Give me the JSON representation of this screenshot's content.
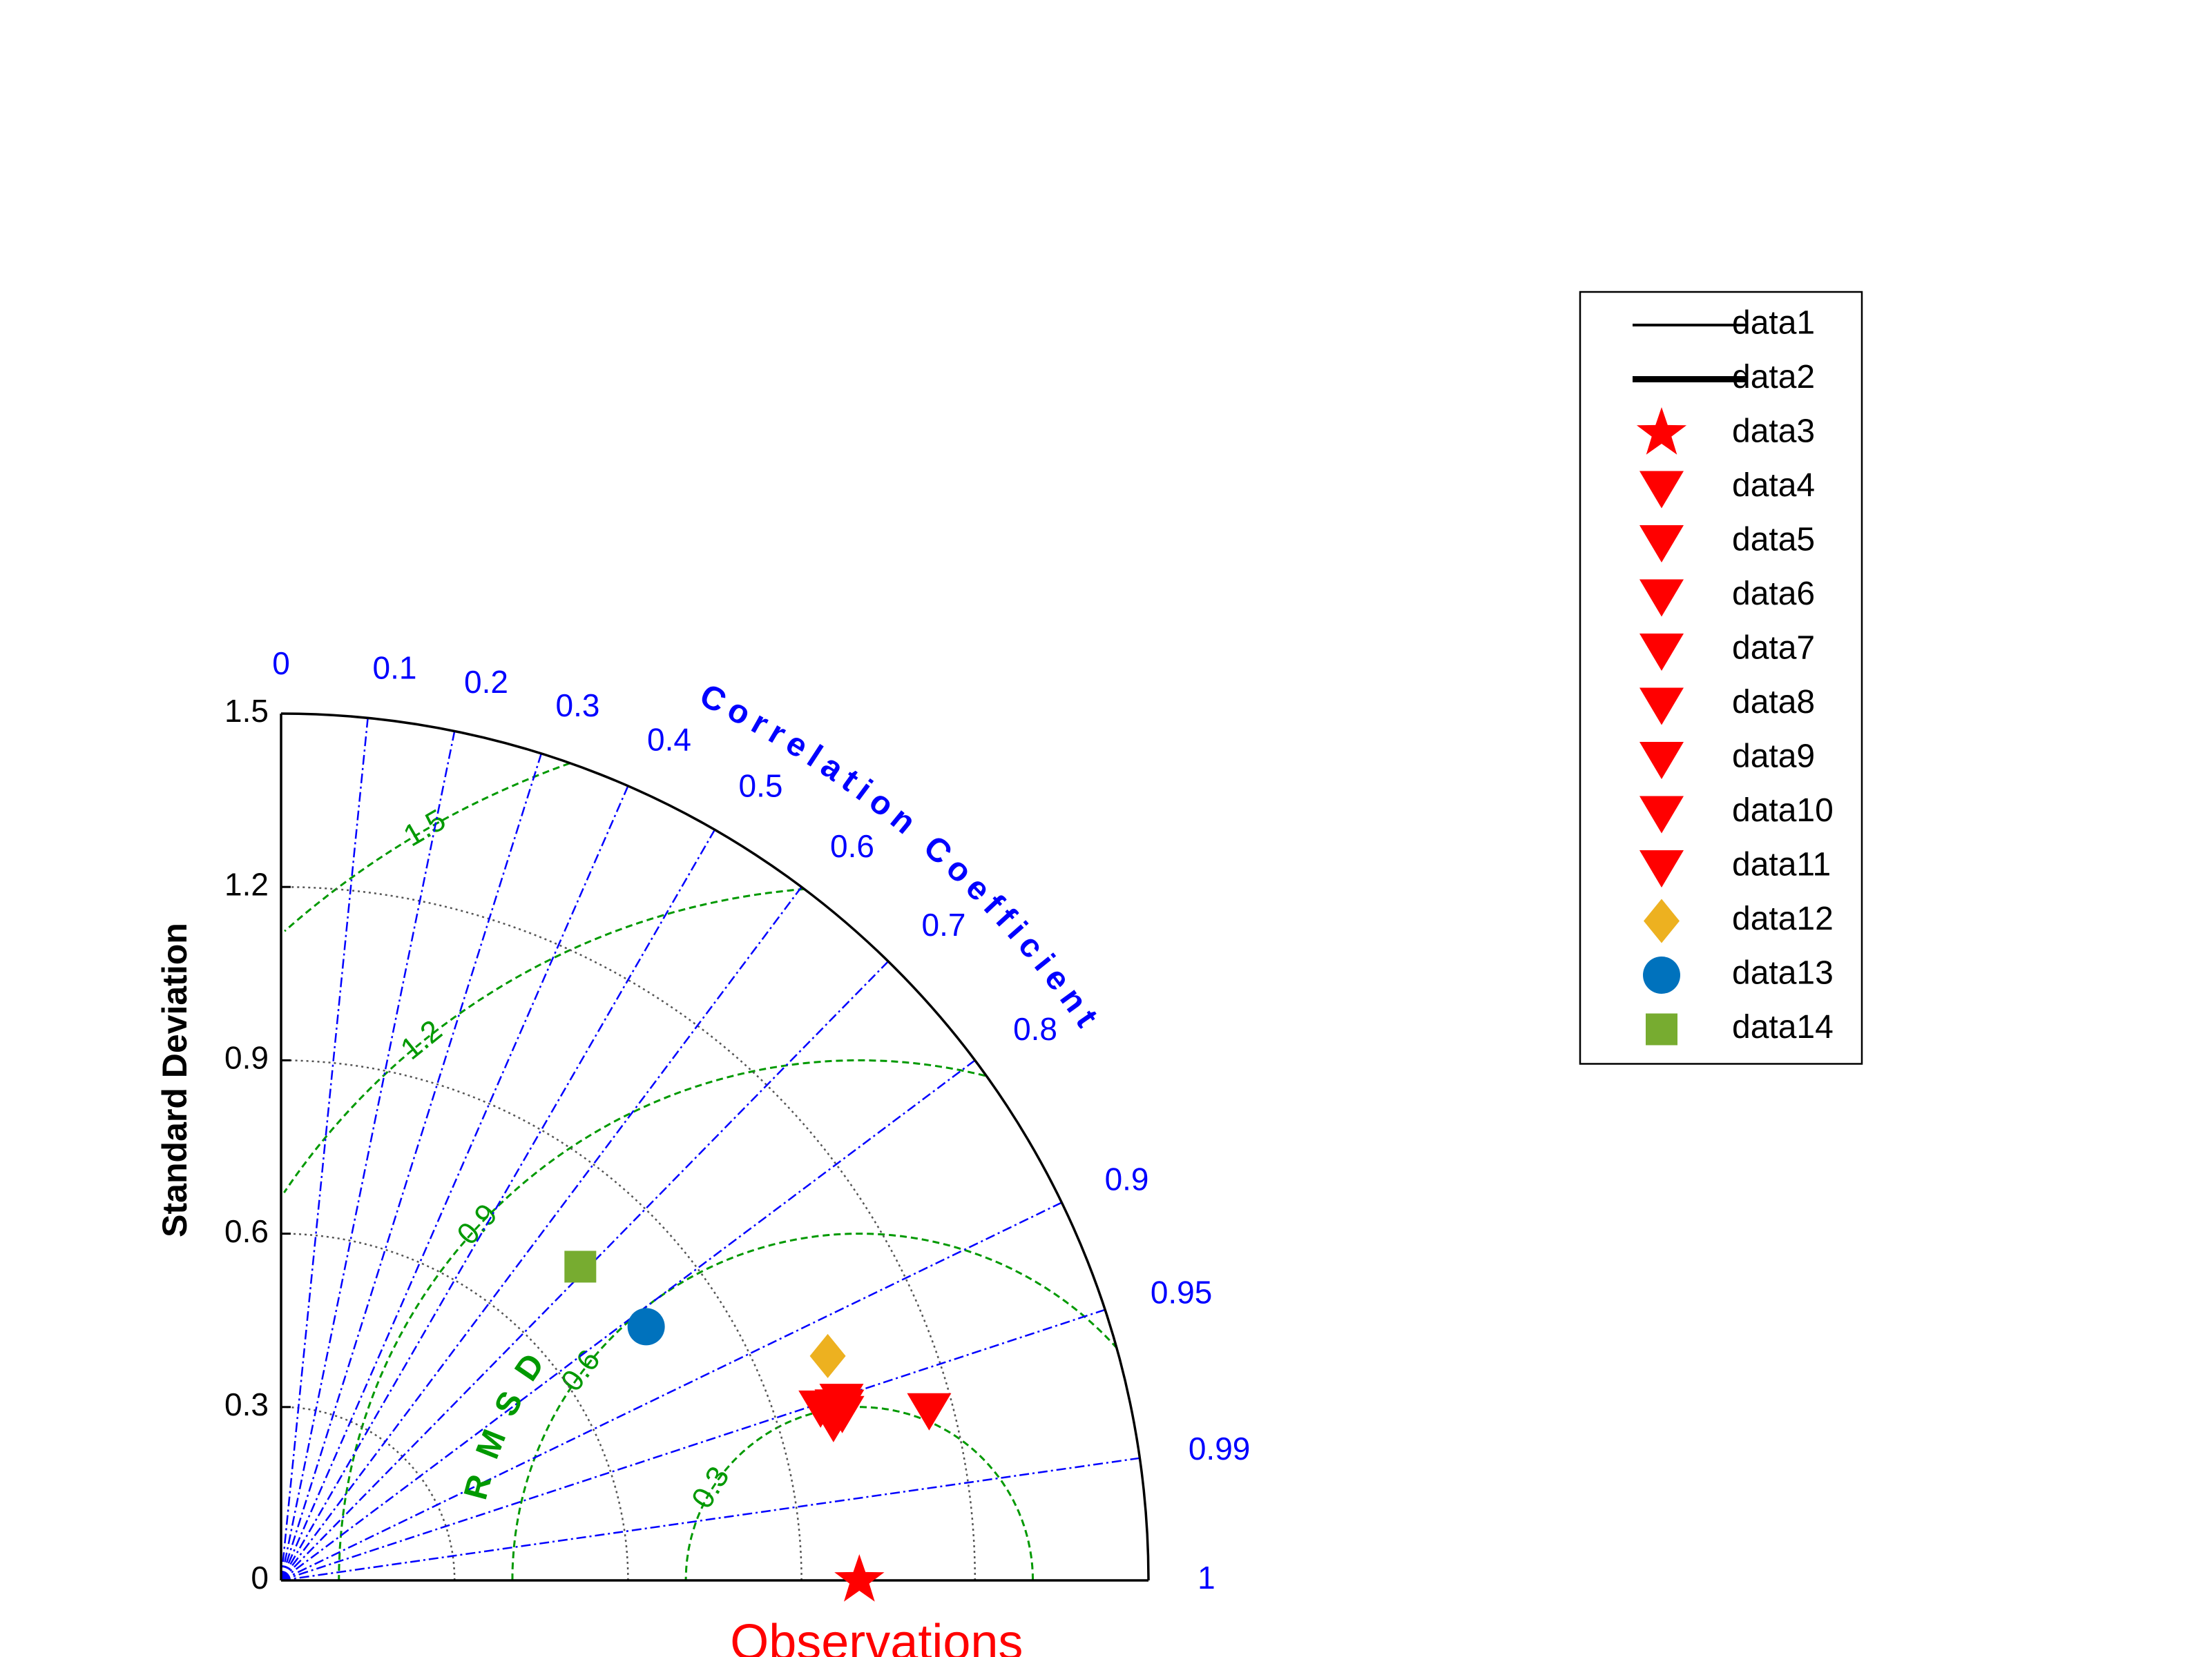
{
  "chart_data": {
    "type": "taylor",
    "ylabel": "Standard Deviation",
    "correlation_label": "Correlation Coefficient",
    "rmsd_label": "RMSD",
    "observations_label": "Observations",
    "std_max": 1.5,
    "std_ticks": [
      "0",
      "0.3",
      "0.6",
      "0.9",
      "1.2",
      "1.5"
    ],
    "std_tick_values": [
      0,
      0.3,
      0.6,
      0.9,
      1.2,
      1.5
    ],
    "std_grid_arcs": [
      0.3,
      0.6,
      0.9,
      1.2
    ],
    "correlation_ticks": [
      "0",
      "0.1",
      "0.2",
      "0.3",
      "0.4",
      "0.5",
      "0.6",
      "0.7",
      "0.8",
      "0.9",
      "0.95",
      "0.99",
      "1"
    ],
    "correlation_values": [
      0,
      0.1,
      0.2,
      0.3,
      0.4,
      0.5,
      0.6,
      0.7,
      0.8,
      0.9,
      0.95,
      0.99,
      1
    ],
    "rmsd_ticks": [
      "0.3",
      "0.6",
      "0.9",
      "1.2",
      "1.5"
    ],
    "rmsd_values": [
      0.3,
      0.6,
      0.9,
      1.2,
      1.5
    ],
    "reference_std": 1.0,
    "colors": {
      "correlation": "#0000ff",
      "rmsd": "#009900",
      "grid": "#555555",
      "observations": "#ff0000",
      "axis": "#000000"
    },
    "series": [
      {
        "name": "data1",
        "marker": "line-thin",
        "color": "#000000"
      },
      {
        "name": "data2",
        "marker": "line-thick",
        "color": "#000000"
      },
      {
        "name": "data3",
        "marker": "star",
        "color": "#ff0000",
        "std": 1.0,
        "corr": 1.0
      },
      {
        "name": "data4",
        "marker": "triangle-down",
        "color": "#ff0000",
        "std": 1.018,
        "corr": 0.952
      },
      {
        "name": "data5",
        "marker": "triangle-down",
        "color": "#ff0000",
        "std": 1.016,
        "corr": 0.955
      },
      {
        "name": "data6",
        "marker": "triangle-down",
        "color": "#ff0000",
        "std": 1.013,
        "corr": 0.958
      },
      {
        "name": "data7",
        "marker": "triangle-down",
        "color": "#ff0000",
        "std": 1.0,
        "corr": 0.957
      },
      {
        "name": "data8",
        "marker": "triangle-down",
        "color": "#ff0000",
        "std": 1.007,
        "corr": 0.954
      },
      {
        "name": "data9",
        "marker": "triangle-down",
        "color": "#ff0000",
        "std": 0.98,
        "corr": 0.952
      },
      {
        "name": "data10",
        "marker": "triangle-down",
        "color": "#ff0000",
        "std": 0.994,
        "corr": 0.961
      },
      {
        "name": "data11",
        "marker": "triangle-down",
        "color": "#ff0000",
        "std": 1.159,
        "corr": 0.967
      },
      {
        "name": "data12",
        "marker": "diamond",
        "color": "#edb120",
        "std": 1.022,
        "corr": 0.925
      },
      {
        "name": "data13",
        "marker": "circle",
        "color": "#0072bd",
        "std": 0.769,
        "corr": 0.821
      },
      {
        "name": "data14",
        "marker": "square",
        "color": "#77ac30",
        "std": 0.75,
        "corr": 0.69
      }
    ],
    "legend_position": "top-right"
  }
}
